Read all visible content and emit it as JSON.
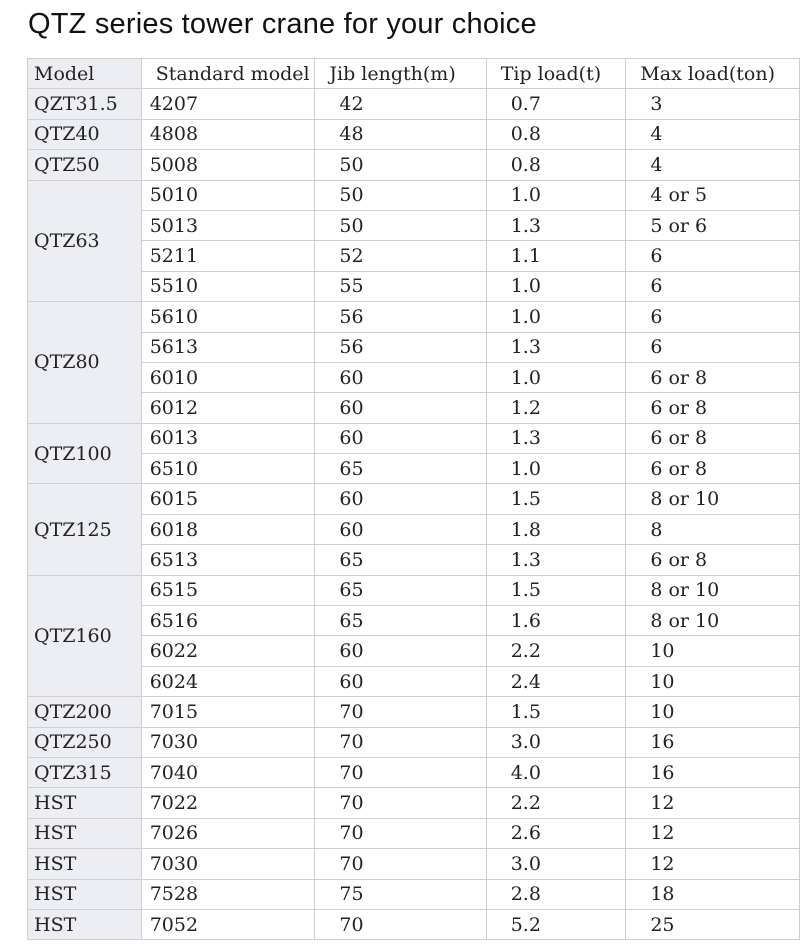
{
  "title": "QTZ series tower crane for your choice",
  "columns": [
    "Model",
    "Standard model",
    "Jib length(m)",
    "Tip load(t)",
    "Max load(ton)"
  ],
  "groups": [
    {
      "model": "QZT31.5",
      "rows": [
        [
          "4207",
          "42",
          "0.7",
          "3"
        ]
      ]
    },
    {
      "model": "QTZ40",
      "rows": [
        [
          "4808",
          "48",
          "0.8",
          "4"
        ]
      ]
    },
    {
      "model": "QTZ50",
      "rows": [
        [
          "5008",
          "50",
          "0.8",
          "4"
        ]
      ]
    },
    {
      "model": "QTZ63",
      "rows": [
        [
          "5010",
          "50",
          "1.0",
          "4 or 5"
        ],
        [
          "5013",
          "50",
          "1.3",
          "5 or 6"
        ],
        [
          "5211",
          "52",
          "1.1",
          "6"
        ],
        [
          "5510",
          "55",
          "1.0",
          "6"
        ]
      ]
    },
    {
      "model": "QTZ80",
      "rows": [
        [
          "5610",
          "56",
          "1.0",
          "6"
        ],
        [
          "5613",
          "56",
          "1.3",
          "6"
        ],
        [
          "6010",
          "60",
          "1.0",
          "6 or 8"
        ],
        [
          "6012",
          "60",
          "1.2",
          "6 or 8"
        ]
      ]
    },
    {
      "model": "QTZ100",
      "rows": [
        [
          "6013",
          "60",
          "1.3",
          "6 or 8"
        ],
        [
          "6510",
          "65",
          "1.0",
          "6 or 8"
        ]
      ]
    },
    {
      "model": "QTZ125",
      "rows": [
        [
          "6015",
          "60",
          "1.5",
          "8 or 10"
        ],
        [
          "6018",
          "60",
          "1.8",
          "8"
        ],
        [
          "6513",
          "65",
          "1.3",
          "6 or 8"
        ]
      ]
    },
    {
      "model": "QTZ160",
      "rows": [
        [
          "6515",
          "65",
          "1.5",
          "8 or 10"
        ],
        [
          "6516",
          "65",
          "1.6",
          "8 or 10"
        ],
        [
          "6022",
          "60",
          "2.2",
          "10"
        ],
        [
          "6024",
          "60",
          "2.4",
          "10"
        ]
      ]
    },
    {
      "model": "QTZ200",
      "rows": [
        [
          "7015",
          "70",
          "1.5",
          "10"
        ]
      ]
    },
    {
      "model": "QTZ250",
      "rows": [
        [
          "7030",
          "70",
          "3.0",
          "16"
        ]
      ]
    },
    {
      "model": "QTZ315",
      "rows": [
        [
          "7040",
          "70",
          "4.0",
          "16"
        ]
      ]
    },
    {
      "model": "HST",
      "rows": [
        [
          "7022",
          "70",
          "2.2",
          "12"
        ]
      ]
    },
    {
      "model": "HST",
      "rows": [
        [
          "7026",
          "70",
          "2.6",
          "12"
        ]
      ]
    },
    {
      "model": "HST",
      "rows": [
        [
          "7030",
          "70",
          "3.0",
          "12"
        ]
      ]
    },
    {
      "model": "HST",
      "rows": [
        [
          "7528",
          "75",
          "2.8",
          "18"
        ]
      ]
    },
    {
      "model": "HST",
      "rows": [
        [
          "7052",
          "70",
          "5.2",
          "25"
        ]
      ]
    }
  ]
}
